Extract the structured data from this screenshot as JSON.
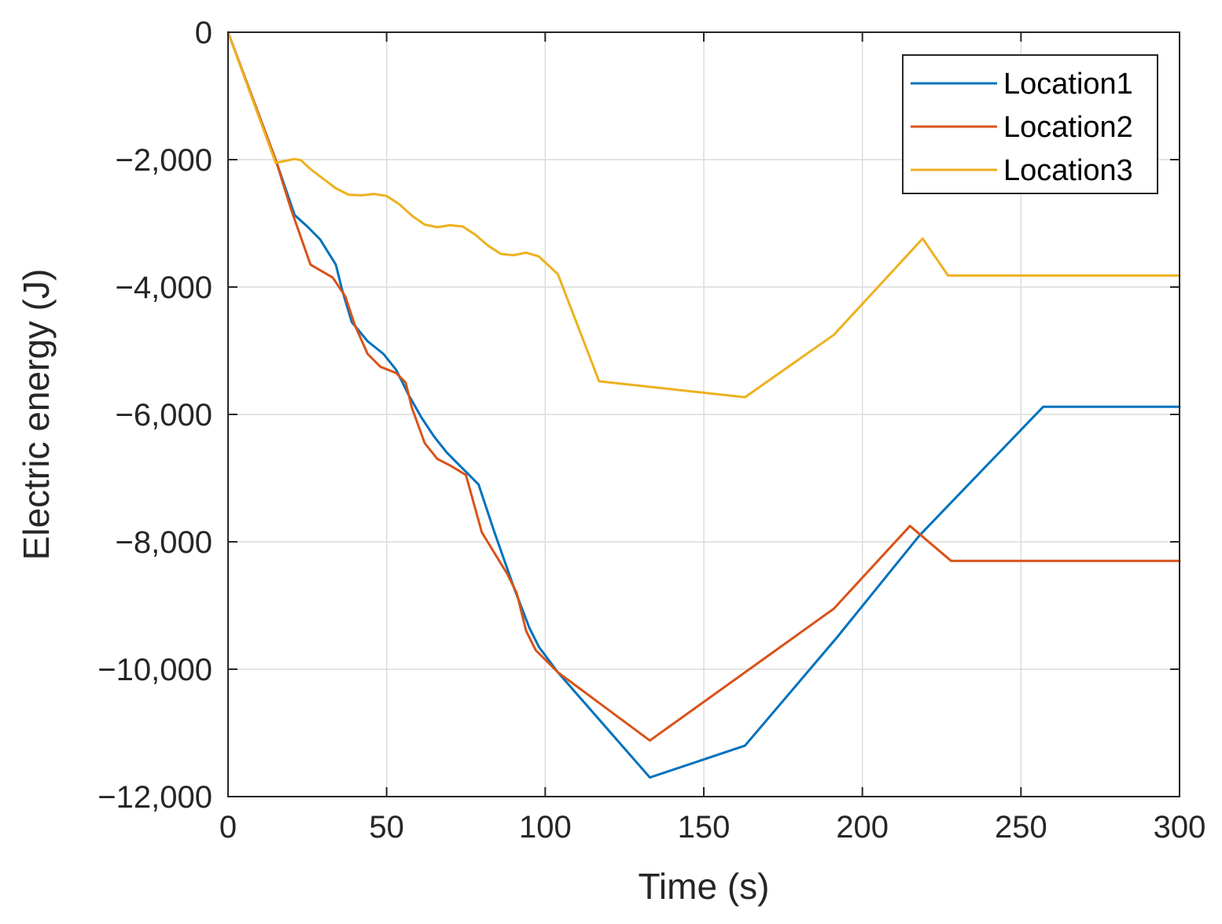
{
  "chart_data": {
    "type": "line",
    "title": "",
    "xlabel": "Time (s)",
    "ylabel": "Electric energy (J)",
    "xlim": [
      0,
      300
    ],
    "ylim": [
      -12000,
      0
    ],
    "xticks": [
      0,
      50,
      100,
      150,
      200,
      250,
      300
    ],
    "yticks": [
      0,
      -2000,
      -4000,
      -6000,
      -8000,
      -10000,
      -12000
    ],
    "xtick_labels": [
      "0",
      "50",
      "100",
      "150",
      "200",
      "250",
      "300"
    ],
    "ytick_labels": [
      "0",
      "−2,000",
      "−4,000",
      "−6,000",
      "−8,000",
      "−10,000",
      "−12,000"
    ],
    "grid": true,
    "legend_position": "top-right",
    "series": [
      {
        "name": "Location1",
        "color": "#0072BD",
        "points": [
          [
            0,
            0
          ],
          [
            15,
            -2000
          ],
          [
            21,
            -2870
          ],
          [
            25,
            -3050
          ],
          [
            29,
            -3250
          ],
          [
            34,
            -3650
          ],
          [
            36,
            -4050
          ],
          [
            39,
            -4550
          ],
          [
            44,
            -4850
          ],
          [
            49,
            -5050
          ],
          [
            53,
            -5300
          ],
          [
            57,
            -5700
          ],
          [
            61,
            -6050
          ],
          [
            65,
            -6350
          ],
          [
            69,
            -6600
          ],
          [
            73,
            -6800
          ],
          [
            79,
            -7100
          ],
          [
            84,
            -7850
          ],
          [
            90,
            -8700
          ],
          [
            95,
            -9350
          ],
          [
            98,
            -9650
          ],
          [
            104,
            -10050
          ],
          [
            133,
            -11700
          ],
          [
            163,
            -11200
          ],
          [
            192,
            -9500
          ],
          [
            218,
            -7900
          ],
          [
            257,
            -5880
          ],
          [
            300,
            -5880
          ]
        ]
      },
      {
        "name": "Location2",
        "color": "#D95319",
        "points": [
          [
            0,
            0
          ],
          [
            15,
            -2000
          ],
          [
            20,
            -2800
          ],
          [
            26,
            -3650
          ],
          [
            33,
            -3850
          ],
          [
            37,
            -4150
          ],
          [
            40,
            -4600
          ],
          [
            44,
            -5050
          ],
          [
            48,
            -5250
          ],
          [
            53,
            -5350
          ],
          [
            56,
            -5500
          ],
          [
            58,
            -5900
          ],
          [
            62,
            -6450
          ],
          [
            66,
            -6700
          ],
          [
            70,
            -6800
          ],
          [
            75,
            -6950
          ],
          [
            80,
            -7850
          ],
          [
            88,
            -8500
          ],
          [
            91,
            -8800
          ],
          [
            94,
            -9400
          ],
          [
            97,
            -9700
          ],
          [
            104,
            -10050
          ],
          [
            133,
            -11120
          ],
          [
            163,
            -10050
          ],
          [
            191,
            -9050
          ],
          [
            215,
            -7750
          ],
          [
            228,
            -8300
          ],
          [
            300,
            -8300
          ]
        ]
      },
      {
        "name": "Location3",
        "color": "#EDB120",
        "points": [
          [
            0,
            0
          ],
          [
            15,
            -2050
          ],
          [
            18,
            -2020
          ],
          [
            21,
            -1990
          ],
          [
            23,
            -2010
          ],
          [
            26,
            -2150
          ],
          [
            30,
            -2300
          ],
          [
            34,
            -2450
          ],
          [
            38,
            -2550
          ],
          [
            42,
            -2560
          ],
          [
            46,
            -2540
          ],
          [
            50,
            -2570
          ],
          [
            54,
            -2700
          ],
          [
            58,
            -2880
          ],
          [
            62,
            -3020
          ],
          [
            66,
            -3060
          ],
          [
            70,
            -3030
          ],
          [
            74,
            -3050
          ],
          [
            78,
            -3180
          ],
          [
            82,
            -3350
          ],
          [
            86,
            -3480
          ],
          [
            90,
            -3500
          ],
          [
            94,
            -3460
          ],
          [
            98,
            -3520
          ],
          [
            104,
            -3800
          ],
          [
            117,
            -5480
          ],
          [
            163,
            -5730
          ],
          [
            191,
            -4750
          ],
          [
            219,
            -3240
          ],
          [
            227,
            -3820
          ],
          [
            300,
            -3820
          ]
        ]
      }
    ]
  }
}
